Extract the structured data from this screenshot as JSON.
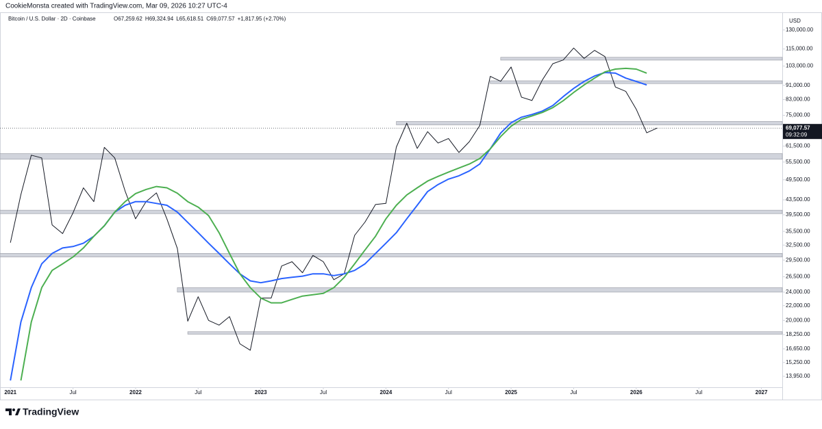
{
  "header": "CookieMonsta created with TradingView.com, Mar 09, 2026 10:27 UTC-4",
  "footer": "TradingView",
  "chart_data": {
    "type": "line",
    "symbol": "Bitcoin / U.S. Dollar · 2D · Coinbase",
    "ohlc": [
      "O67,259.62",
      "H69,324.94",
      "L65,618.51",
      "C69,077.57",
      "+1,817.95 (+2.70%)"
    ],
    "currency": "USD",
    "log_scale": true,
    "grid": false,
    "x": [
      "2021-01",
      "2021-02",
      "2021-03",
      "2021-04",
      "2021-05",
      "2021-06",
      "2021-07",
      "2021-08",
      "2021-09",
      "2021-10",
      "2021-11",
      "2021-12",
      "2022-01",
      "2022-02",
      "2022-03",
      "2022-04",
      "2022-05",
      "2022-06",
      "2022-07",
      "2022-08",
      "2022-09",
      "2022-10",
      "2022-11",
      "2022-12",
      "2023-01",
      "2023-02",
      "2023-03",
      "2023-04",
      "2023-05",
      "2023-06",
      "2023-07",
      "2023-08",
      "2023-09",
      "2023-10",
      "2023-11",
      "2023-12",
      "2024-01",
      "2024-02",
      "2024-03",
      "2024-04",
      "2024-05",
      "2024-06",
      "2024-07",
      "2024-08",
      "2024-09",
      "2024-10",
      "2024-11",
      "2024-12",
      "2025-01",
      "2025-02",
      "2025-03",
      "2025-04",
      "2025-05",
      "2025-06",
      "2025-07",
      "2025-08",
      "2025-09",
      "2025-10",
      "2025-11",
      "2025-12",
      "2026-01",
      "2026-02",
      "2026-03"
    ],
    "series": [
      {
        "color": "#131722",
        "values": [
          33000,
          45000,
          58000,
          57000,
          37000,
          35000,
          40000,
          47000,
          43000,
          61000,
          57000,
          46000,
          38500,
          43000,
          45500,
          38500,
          31800,
          19900,
          23300,
          20000,
          19400,
          20500,
          17200,
          16500,
          23100,
          23100,
          28400,
          29200,
          27200,
          30400,
          29200,
          26000,
          27000,
          34600,
          37700,
          42200,
          42500,
          61100,
          71300,
          60600,
          67500,
          62700,
          64600,
          59000,
          63300,
          70200,
          96400,
          93400,
          102400,
          84300,
          82500,
          94200,
          104600,
          107100,
          115700,
          108200,
          114000,
          109500,
          90000,
          87500,
          78000,
          67000,
          69077.57
        ]
      },
      {
        "color": "#2962ff",
        "values": [
          13580,
          19800,
          24700,
          28800,
          30800,
          31900,
          32200,
          32900,
          34400,
          36800,
          40200,
          42000,
          43000,
          43000,
          42500,
          42000,
          40200,
          37600,
          35200,
          32900,
          30800,
          28800,
          27000,
          25800,
          25500,
          25800,
          26200,
          26400,
          26600,
          27000,
          27000,
          26700,
          27000,
          27600,
          28800,
          30800,
          32900,
          35200,
          38500,
          42000,
          45900,
          48000,
          49700,
          50800,
          52400,
          54800,
          60400,
          66900,
          71500,
          74100,
          75400,
          77100,
          79900,
          84600,
          89200,
          93300,
          96600,
          98800,
          98400,
          95300,
          93300,
          91200,
          null
        ]
      },
      {
        "color": "#4caf50",
        "values": [
          null,
          13580,
          19800,
          24700,
          27600,
          28800,
          30100,
          31900,
          34400,
          36800,
          40200,
          43000,
          45300,
          46500,
          47400,
          47000,
          45400,
          43000,
          41500,
          39300,
          35200,
          30800,
          27000,
          24700,
          23100,
          22400,
          22400,
          22900,
          23400,
          23600,
          23800,
          24700,
          26400,
          28800,
          31500,
          34400,
          38500,
          42000,
          44900,
          47000,
          49100,
          50600,
          52000,
          53400,
          54800,
          56800,
          60400,
          65400,
          69900,
          73100,
          74700,
          76400,
          78800,
          82400,
          86900,
          91200,
          95300,
          99200,
          101000,
          101500,
          101000,
          98400,
          null
        ]
      }
    ],
    "zones": [
      {
        "low": 107000,
        "high": 109000,
        "start": "2024-12"
      },
      {
        "low": 92000,
        "high": 93700,
        "start": "2024-11"
      },
      {
        "low": 70500,
        "high": 72100,
        "start": "2024-02"
      },
      {
        "low": 56500,
        "high": 58600,
        "start": "2020-12"
      },
      {
        "low": 39800,
        "high": 40700,
        "start": "2020-12"
      },
      {
        "low": 30100,
        "high": 30800,
        "start": "2020-12"
      },
      {
        "low": 24000,
        "high": 24700,
        "start": "2022-05"
      },
      {
        "low": 18300,
        "high": 18600,
        "start": "2022-06"
      }
    ],
    "last": {
      "value": 69077.57,
      "label": "69,077.57",
      "countdown": "09:32:09"
    },
    "xlim": [
      "2020-12",
      "2027-03"
    ],
    "xticks": [
      {
        "value": "2021-01",
        "label": "2021"
      },
      {
        "value": "2021-07",
        "label": "Jul"
      },
      {
        "value": "2022-01",
        "label": "2022"
      },
      {
        "value": "2022-07",
        "label": "Jul"
      },
      {
        "value": "2023-01",
        "label": "2023"
      },
      {
        "value": "2023-07",
        "label": "Jul"
      },
      {
        "value": "2024-01",
        "label": "2024"
      },
      {
        "value": "2024-07",
        "label": "Jul"
      },
      {
        "value": "2025-01",
        "label": "2025"
      },
      {
        "value": "2025-07",
        "label": "Jul"
      },
      {
        "value": "2026-01",
        "label": "2026"
      },
      {
        "value": "2026-07",
        "label": "Jul"
      },
      {
        "value": "2027-01",
        "label": "2027"
      }
    ],
    "ylim": [
      13000,
      145000
    ],
    "yticks": [
      {
        "value": 130000,
        "label": "130,000.00"
      },
      {
        "value": 115000,
        "label": "115,000.00"
      },
      {
        "value": 103000,
        "label": "103,000.00"
      },
      {
        "value": 91000,
        "label": "91,000.00"
      },
      {
        "value": 83000,
        "label": "83,000.00"
      },
      {
        "value": 75000,
        "label": "75,000.00"
      },
      {
        "value": 61500,
        "label": "61,500.00"
      },
      {
        "value": 55500,
        "label": "55,500.00"
      },
      {
        "value": 49500,
        "label": "49,500.00"
      },
      {
        "value": 43500,
        "label": "43,500.00"
      },
      {
        "value": 39500,
        "label": "39,500.00"
      },
      {
        "value": 35500,
        "label": "35,500.00"
      },
      {
        "value": 32500,
        "label": "32,500.00"
      },
      {
        "value": 29500,
        "label": "29,500.00"
      },
      {
        "value": 26500,
        "label": "26,500.00"
      },
      {
        "value": 24000,
        "label": "24,000.00"
      },
      {
        "value": 22000,
        "label": "22,000.00"
      },
      {
        "value": 20000,
        "label": "20,000.00"
      },
      {
        "value": 18250,
        "label": "18,250.00"
      },
      {
        "value": 16650,
        "label": "16,650.00"
      },
      {
        "value": 15250,
        "label": "15,250.00"
      },
      {
        "value": 13950,
        "label": "13,950.00"
      }
    ]
  }
}
